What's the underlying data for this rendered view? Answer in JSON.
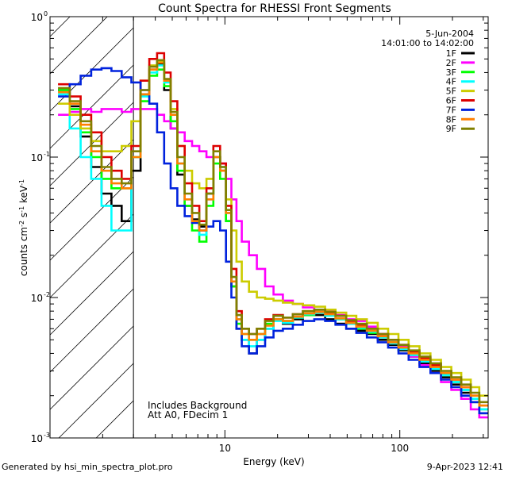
{
  "chart_data": {
    "type": "line",
    "title": "Count Spectra for RHESSI Front Segments",
    "xlabel": "Energy (keV)",
    "ylabel_parts": {
      "pre": "counts cm",
      "exp1": "-2",
      "mid": " s",
      "exp2": "-1",
      "mid2": " keV",
      "exp3": "-1"
    },
    "xscale": "log",
    "yscale": "log",
    "xlim": [
      1.0,
      320.0
    ],
    "ylim": [
      0.001,
      1.0
    ],
    "x_ticks": [
      {
        "value": 10,
        "label": "10"
      },
      {
        "value": 100,
        "label": "100"
      }
    ],
    "y_ticks": [
      {
        "value": 1.0,
        "label": "10",
        "exp": "0"
      },
      {
        "value": 0.1,
        "label": "10",
        "exp": "-1"
      },
      {
        "value": 0.01,
        "label": "10",
        "exp": "-2"
      },
      {
        "value": 0.001,
        "label": "10",
        "exp": "-3"
      }
    ],
    "attenuator_boundary_kev": 3.0,
    "date_label": "5-Jun-2004",
    "time_label": "14:01:00 to 14:02:00",
    "annotation_lines": [
      "Includes Background",
      "Att A0, FDecim 1"
    ],
    "energy_kev": [
      1.2,
      1.4,
      1.6,
      1.85,
      2.1,
      2.4,
      2.75,
      3.1,
      3.5,
      3.9,
      4.3,
      4.7,
      5.1,
      5.6,
      6.2,
      6.8,
      7.5,
      8.2,
      9.0,
      9.8,
      10.5,
      11.3,
      12.0,
      13.0,
      14.5,
      16.0,
      18.0,
      20.0,
      23.0,
      26.0,
      30.0,
      35.0,
      40.0,
      46.0,
      53.0,
      60.0,
      70.0,
      80.0,
      92.0,
      105.0,
      120.0,
      140.0,
      160.0,
      185.0,
      210.0,
      240.0,
      270.0,
      300.0
    ],
    "series": [
      {
        "name": "1F",
        "color": "#000000",
        "values": [
          0.3,
          0.23,
          0.14,
          0.085,
          0.055,
          0.045,
          0.035,
          0.08,
          0.28,
          0.42,
          0.46,
          0.3,
          0.16,
          0.075,
          0.045,
          0.036,
          0.032,
          0.055,
          0.1,
          0.08,
          0.035,
          0.012,
          0.006,
          0.005,
          0.004,
          0.005,
          0.006,
          0.007,
          0.0065,
          0.007,
          0.0075,
          0.0075,
          0.007,
          0.0065,
          0.006,
          0.0058,
          0.0055,
          0.005,
          0.0046,
          0.0042,
          0.0038,
          0.0034,
          0.003,
          0.0027,
          0.0024,
          0.0021,
          0.0018,
          0.0015
        ]
      },
      {
        "name": "2F",
        "color": "#ff00ff",
        "values": [
          0.2,
          0.21,
          0.22,
          0.21,
          0.22,
          0.22,
          0.21,
          0.22,
          0.22,
          0.22,
          0.2,
          0.18,
          0.16,
          0.15,
          0.13,
          0.12,
          0.11,
          0.1,
          0.1,
          0.09,
          0.07,
          0.05,
          0.035,
          0.025,
          0.02,
          0.016,
          0.012,
          0.0105,
          0.0095,
          0.009,
          0.0085,
          0.0082,
          0.008,
          0.0075,
          0.007,
          0.0068,
          0.0062,
          0.0055,
          0.005,
          0.0045,
          0.0038,
          0.0033,
          0.0029,
          0.0025,
          0.0022,
          0.0019,
          0.0016,
          0.0014
        ]
      },
      {
        "name": "3F",
        "color": "#00ff00",
        "values": [
          0.3,
          0.22,
          0.15,
          0.1,
          0.07,
          0.06,
          0.06,
          0.1,
          0.25,
          0.38,
          0.42,
          0.32,
          0.18,
          0.08,
          0.045,
          0.03,
          0.025,
          0.045,
          0.09,
          0.07,
          0.035,
          0.012,
          0.0065,
          0.0055,
          0.005,
          0.0055,
          0.0065,
          0.007,
          0.0068,
          0.0072,
          0.0075,
          0.0078,
          0.0075,
          0.007,
          0.0065,
          0.006,
          0.0056,
          0.0052,
          0.0048,
          0.0043,
          0.0039,
          0.0035,
          0.0031,
          0.0028,
          0.0025,
          0.0022,
          0.0019,
          0.0016
        ]
      },
      {
        "name": "4F",
        "color": "#00ffff",
        "values": [
          0.28,
          0.16,
          0.1,
          0.07,
          0.045,
          0.03,
          0.03,
          0.1,
          0.27,
          0.4,
          0.45,
          0.34,
          0.2,
          0.09,
          0.05,
          0.035,
          0.028,
          0.05,
          0.1,
          0.085,
          0.04,
          0.013,
          0.007,
          0.005,
          0.0045,
          0.005,
          0.006,
          0.0068,
          0.0066,
          0.0072,
          0.0076,
          0.0078,
          0.0074,
          0.007,
          0.0065,
          0.0061,
          0.0057,
          0.0052,
          0.0047,
          0.0043,
          0.0039,
          0.0035,
          0.0031,
          0.0028,
          0.0025,
          0.0022,
          0.0019,
          0.0016
        ]
      },
      {
        "name": "5F",
        "color": "#cccc00",
        "values": [
          0.24,
          0.2,
          0.16,
          0.13,
          0.11,
          0.11,
          0.12,
          0.18,
          0.35,
          0.45,
          0.48,
          0.35,
          0.22,
          0.12,
          0.08,
          0.065,
          0.06,
          0.07,
          0.1,
          0.08,
          0.05,
          0.03,
          0.018,
          0.013,
          0.011,
          0.01,
          0.0098,
          0.0095,
          0.0092,
          0.009,
          0.0088,
          0.0086,
          0.0082,
          0.0078,
          0.0074,
          0.007,
          0.0066,
          0.006,
          0.0055,
          0.005,
          0.0045,
          0.004,
          0.0036,
          0.0032,
          0.0029,
          0.0026,
          0.0023,
          0.002
        ]
      },
      {
        "name": "6F",
        "color": "#dd0000",
        "values": [
          0.33,
          0.27,
          0.2,
          0.15,
          0.1,
          0.08,
          0.07,
          0.12,
          0.35,
          0.5,
          0.55,
          0.4,
          0.25,
          0.12,
          0.065,
          0.045,
          0.035,
          0.06,
          0.12,
          0.09,
          0.045,
          0.016,
          0.008,
          0.006,
          0.0055,
          0.006,
          0.007,
          0.0075,
          0.0072,
          0.0076,
          0.008,
          0.0082,
          0.0078,
          0.0074,
          0.0068,
          0.0064,
          0.006,
          0.0055,
          0.005,
          0.0046,
          0.0041,
          0.0037,
          0.0033,
          0.0029,
          0.0026,
          0.0023,
          0.002,
          0.0017
        ]
      },
      {
        "name": "7F",
        "color": "#0022dd",
        "values": [
          0.27,
          0.33,
          0.38,
          0.42,
          0.43,
          0.41,
          0.37,
          0.34,
          0.3,
          0.24,
          0.15,
          0.09,
          0.06,
          0.045,
          0.038,
          0.034,
          0.03,
          0.032,
          0.035,
          0.03,
          0.018,
          0.01,
          0.006,
          0.0045,
          0.004,
          0.0045,
          0.0052,
          0.0058,
          0.006,
          0.0064,
          0.0068,
          0.007,
          0.0068,
          0.0064,
          0.006,
          0.0056,
          0.0052,
          0.0048,
          0.0044,
          0.004,
          0.0036,
          0.0032,
          0.0029,
          0.0026,
          0.0023,
          0.002,
          0.0018,
          0.0015
        ]
      },
      {
        "name": "8F",
        "color": "#ff7f00",
        "values": [
          0.29,
          0.24,
          0.17,
          0.11,
          0.08,
          0.065,
          0.06,
          0.1,
          0.28,
          0.42,
          0.47,
          0.35,
          0.2,
          0.09,
          0.05,
          0.035,
          0.03,
          0.05,
          0.1,
          0.08,
          0.04,
          0.013,
          0.007,
          0.0055,
          0.005,
          0.0055,
          0.0063,
          0.007,
          0.0068,
          0.0073,
          0.0077,
          0.0079,
          0.0076,
          0.0071,
          0.0066,
          0.0062,
          0.0058,
          0.0053,
          0.0048,
          0.0044,
          0.004,
          0.0036,
          0.0032,
          0.0029,
          0.0026,
          0.0023,
          0.002,
          0.0017
        ]
      },
      {
        "name": "9F",
        "color": "#808000",
        "values": [
          0.31,
          0.25,
          0.18,
          0.12,
          0.085,
          0.07,
          0.065,
          0.11,
          0.3,
          0.44,
          0.49,
          0.36,
          0.21,
          0.1,
          0.055,
          0.04,
          0.033,
          0.055,
          0.11,
          0.085,
          0.042,
          0.014,
          0.0075,
          0.006,
          0.0055,
          0.006,
          0.0068,
          0.0074,
          0.0072,
          0.0076,
          0.008,
          0.0082,
          0.0079,
          0.0074,
          0.0069,
          0.0065,
          0.006,
          0.0055,
          0.005,
          0.0046,
          0.0042,
          0.0038,
          0.0034,
          0.003,
          0.0027,
          0.0024,
          0.0021,
          0.0018
        ]
      }
    ]
  },
  "footer": {
    "generated_by": "Generated by hsi_min_spectra_plot.pro",
    "timestamp": "9-Apr-2023 12:41"
  }
}
